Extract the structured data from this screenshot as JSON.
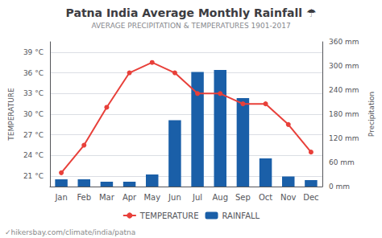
{
  "chart_data": {
    "type": "bar",
    "title": "Patna India Average Monthly Rainfall ☂",
    "subtitle": "AVERAGE PRECIPITATION & TEMPERATURES 1901-2017",
    "categories": [
      "Jan",
      "Feb",
      "Mar",
      "Apr",
      "May",
      "Jun",
      "Jul",
      "Aug",
      "Sep",
      "Oct",
      "Nov",
      "Dec"
    ],
    "series": [
      {
        "name": "TEMPERATURE",
        "type": "line",
        "marker": "circle",
        "color": "#e8403a",
        "values": [
          21.5,
          25.5,
          31.0,
          36.0,
          37.5,
          36.0,
          33.0,
          33.0,
          31.5,
          31.5,
          28.5,
          24.5
        ]
      },
      {
        "name": "RAINFALL",
        "type": "bar",
        "axis": "y2",
        "color": "#1a5fa8",
        "values": [
          18,
          18,
          12,
          12,
          30,
          165,
          285,
          290,
          220,
          70,
          25,
          16
        ]
      }
    ],
    "ylabel": "TEMPERATURE",
    "y2label": "Precipitation",
    "ylim": [
      19.5,
      40.5
    ],
    "yticks": [
      {
        "value": 21,
        "label": "21 °C"
      },
      {
        "value": 24,
        "label": "24 °C"
      },
      {
        "value": 27,
        "label": "27 °C"
      },
      {
        "value": 30,
        "label": "30 °C"
      },
      {
        "value": 33,
        "label": "33 °C"
      },
      {
        "value": 36,
        "label": "36 °C"
      },
      {
        "value": 39,
        "label": "39 °C"
      }
    ],
    "y2lim": [
      0,
      360
    ],
    "y2ticks": [
      {
        "value": 0,
        "label": "0 mm"
      },
      {
        "value": 60,
        "label": "60 mm"
      },
      {
        "value": 120,
        "label": "120 mm"
      },
      {
        "value": 180,
        "label": "180 mm"
      },
      {
        "value": 240,
        "label": "240 mm"
      },
      {
        "value": 300,
        "label": "300 mm"
      },
      {
        "value": 360,
        "label": "360 mm"
      }
    ],
    "grid": true,
    "legend": "bottom",
    "annotations": [
      "✓hikersbay.com/climate/india/patna"
    ]
  }
}
